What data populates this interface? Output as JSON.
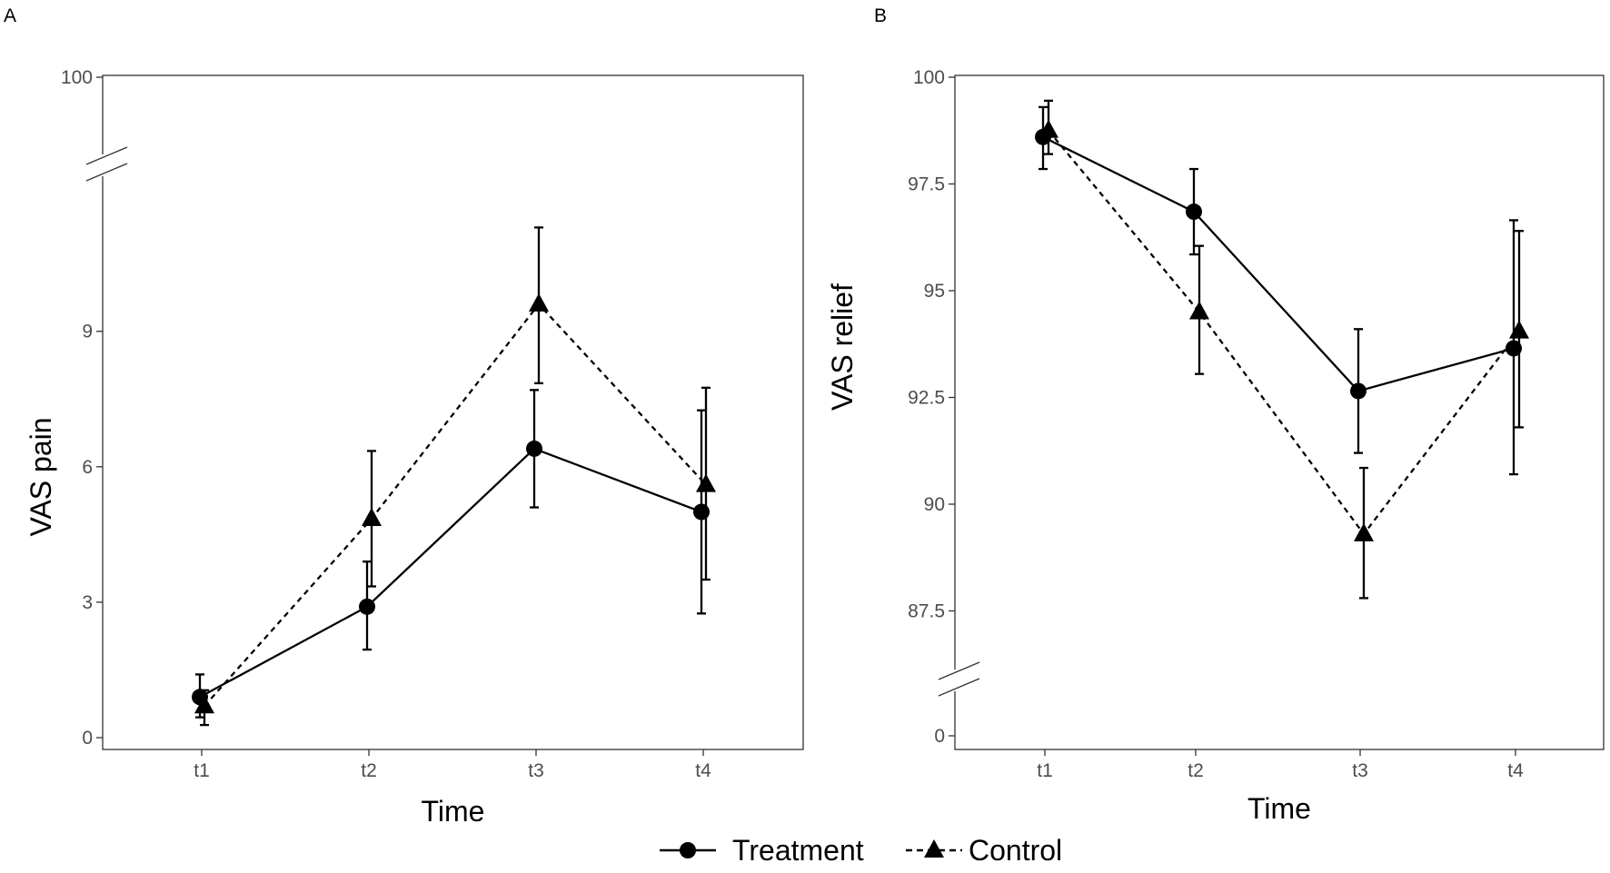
{
  "legend": {
    "entries": [
      {
        "label": "Treatment",
        "marker": "circle",
        "line": "solid"
      },
      {
        "label": "Control",
        "marker": "triangle",
        "line": "dashed"
      }
    ]
  },
  "chart_data": [
    {
      "type": "line",
      "panel_label": "A",
      "xlabel": "Time",
      "ylabel": "VAS pain",
      "categories": [
        "t1",
        "t2",
        "t3",
        "t4"
      ],
      "y_ticks": [
        0,
        3,
        6,
        9,
        100
      ],
      "y_tick_labels": [
        "0",
        "3",
        "6",
        "9",
        "100"
      ],
      "ylim": [
        0,
        100
      ],
      "axis_break": "between 9 and 100",
      "series": [
        {
          "name": "Treatment",
          "marker": "circle",
          "line": "solid",
          "values": [
            0.9,
            2.9,
            6.4,
            5.0
          ],
          "err_low": [
            0.45,
            1.95,
            5.1,
            2.75
          ],
          "err_high": [
            1.4,
            3.9,
            7.7,
            7.25
          ]
        },
        {
          "name": "Control",
          "marker": "triangle",
          "line": "dashed",
          "values": [
            0.7,
            4.85,
            9.6,
            5.6
          ],
          "err_low": [
            0.28,
            3.35,
            7.85,
            3.5
          ],
          "err_high": [
            1.05,
            6.35,
            11.3,
            7.75
          ]
        }
      ]
    },
    {
      "type": "line",
      "panel_label": "B",
      "xlabel": "Time",
      "ylabel": "VAS relief",
      "categories": [
        "t1",
        "t2",
        "t3",
        "t4"
      ],
      "y_ticks": [
        0,
        87.5,
        90,
        92.5,
        95,
        97.5,
        100
      ],
      "y_tick_labels": [
        "0",
        "87.5",
        "90",
        "92.5",
        "95",
        "97.5",
        "100"
      ],
      "ylim": [
        0,
        100
      ],
      "axis_break": "between 0 and 87.5",
      "series": [
        {
          "name": "Treatment",
          "marker": "circle",
          "line": "solid",
          "values": [
            98.6,
            96.85,
            92.65,
            93.65
          ],
          "err_low": [
            97.85,
            95.85,
            91.2,
            90.7
          ],
          "err_high": [
            99.3,
            97.85,
            94.1,
            96.65
          ]
        },
        {
          "name": "Control",
          "marker": "triangle",
          "line": "dashed",
          "values": [
            98.75,
            94.5,
            89.3,
            94.05
          ],
          "err_low": [
            98.2,
            93.05,
            87.8,
            91.8
          ],
          "err_high": [
            99.45,
            96.05,
            90.85,
            96.4
          ]
        }
      ]
    }
  ]
}
